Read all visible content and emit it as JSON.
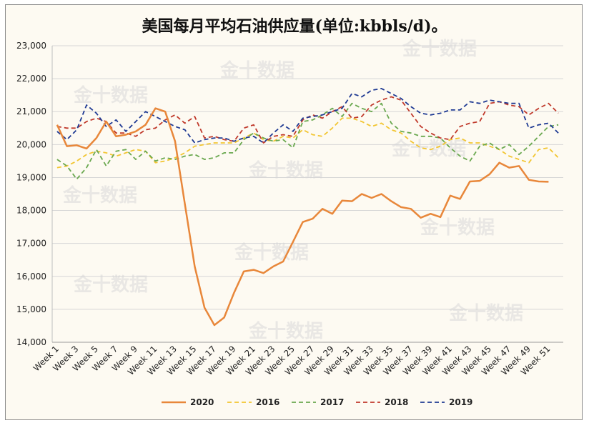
{
  "chart_data": {
    "type": "line",
    "title": "美国每月平均石油供应量(单位:kbbls/d)。",
    "xlabel": "",
    "ylabel": "",
    "ylim": [
      14000,
      23000
    ],
    "y_ticks": [
      "14,000",
      "15,000",
      "16,000",
      "17,000",
      "18,000",
      "19,000",
      "20,000",
      "21,000",
      "22,000",
      "23,000"
    ],
    "x_ticks": [
      "Week 1",
      "Week 3",
      "Week 5",
      "Week 7",
      "Week 9",
      "Week 11",
      "Week 13",
      "Week 15",
      "Week 17",
      "Week 19",
      "Week 21",
      "Week 23",
      "Week 25",
      "Week 27",
      "Week 29",
      "Week 31",
      "Week 33",
      "Week 35",
      "Week 37",
      "Week 39",
      "Week 41",
      "Week 43",
      "Week 45",
      "Week 47",
      "Week 49",
      "Week 51"
    ],
    "grid": true,
    "legend_position": "bottom",
    "watermark": "金十数据",
    "series": [
      {
        "name": "2020",
        "color": "#e8873a",
        "style": "solid",
        "values": [
          20600,
          19950,
          19980,
          19880,
          20200,
          20700,
          20250,
          20300,
          20400,
          20600,
          21100,
          21000,
          20100,
          18200,
          16300,
          15050,
          14520,
          14750,
          15500,
          16150,
          16200,
          16100,
          16300,
          16450,
          17050,
          17650,
          17750,
          18050,
          17900,
          18300,
          18280,
          18500,
          18380,
          18500,
          18280,
          18100,
          18050,
          17780,
          17900,
          17800,
          18450,
          18350,
          18880,
          18900,
          19100,
          19450,
          19300,
          19350,
          18930,
          18880,
          18870
        ]
      },
      {
        "name": "2016",
        "color": "#f2c531",
        "style": "dashed",
        "values": [
          19300,
          19350,
          19500,
          19700,
          19800,
          19750,
          19650,
          19750,
          19850,
          19800,
          19450,
          19500,
          19600,
          19750,
          19950,
          20000,
          20050,
          20050,
          20050,
          20200,
          20350,
          20150,
          20100,
          20250,
          20200,
          20450,
          20300,
          20250,
          20500,
          20800,
          20800,
          20700,
          20550,
          20650,
          20450,
          20350,
          20100,
          19900,
          19850,
          19950,
          20150,
          20200,
          20050,
          20050,
          19950,
          19850,
          19650,
          19550,
          19450,
          19850,
          19900,
          19600
        ]
      },
      {
        "name": "2017",
        "color": "#6aa84f",
        "style": "dashed",
        "values": [
          19550,
          19350,
          18950,
          19300,
          19850,
          19350,
          19800,
          19850,
          19550,
          19800,
          19500,
          19600,
          19550,
          19650,
          19700,
          19550,
          19600,
          19750,
          19750,
          20150,
          20350,
          20200,
          20100,
          20150,
          19900,
          20700,
          20750,
          20900,
          21100,
          20850,
          21250,
          21100,
          21000,
          21250,
          20650,
          20400,
          20350,
          20250,
          20250,
          20200,
          19900,
          19650,
          19500,
          19950,
          20050,
          19850,
          20000,
          19700,
          19950,
          20250,
          20550,
          20600
        ]
      },
      {
        "name": "2018",
        "color": "#c0392b",
        "style": "dashed",
        "values": [
          20550,
          20500,
          20500,
          20700,
          20800,
          20700,
          20350,
          20350,
          20250,
          20450,
          20500,
          20750,
          20900,
          20650,
          20850,
          20200,
          20250,
          20150,
          20100,
          20500,
          20600,
          20050,
          20250,
          20300,
          20250,
          20750,
          20900,
          20800,
          21000,
          21150,
          20800,
          20850,
          21200,
          21350,
          21450,
          21350,
          20950,
          20550,
          20350,
          20200,
          20150,
          20550,
          20650,
          20700,
          21250,
          21300,
          21200,
          21150,
          20900,
          21100,
          21250,
          20950
        ]
      },
      {
        "name": "2019",
        "color": "#1f3a93",
        "style": "dashed",
        "values": [
          20400,
          20150,
          20450,
          21200,
          20950,
          20550,
          20750,
          20400,
          20700,
          21000,
          20850,
          20700,
          20550,
          20450,
          20050,
          20150,
          20200,
          20200,
          20100,
          20200,
          20250,
          20050,
          20350,
          20600,
          20400,
          20800,
          20850,
          20900,
          21000,
          21100,
          21550,
          21450,
          21650,
          21700,
          21550,
          21400,
          21150,
          20950,
          20900,
          20950,
          21050,
          21050,
          21300,
          21250,
          21350,
          21300,
          21250,
          21250,
          20500,
          20600,
          20650,
          20350
        ]
      }
    ]
  }
}
